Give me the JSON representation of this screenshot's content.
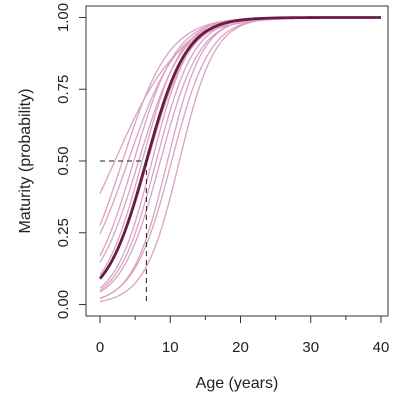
{
  "chart_data": {
    "type": "line",
    "xlabel": "Age (years)",
    "ylabel": "Maturity (probability)",
    "xlim": [
      -2,
      41
    ],
    "ylim": [
      -0.04,
      1.04
    ],
    "x_ticks": [
      0,
      10,
      20,
      30,
      40
    ],
    "x_tick_labels": [
      "0",
      "10",
      "20",
      "30",
      "40"
    ],
    "x_minor_ticks": [
      5,
      15,
      25,
      35
    ],
    "y_ticks": [
      0,
      0.25,
      0.5,
      0.75,
      1.0
    ],
    "y_tick_labels": [
      "0.00",
      "0.25",
      "0.50",
      "0.75",
      "1.00"
    ],
    "grid": false,
    "legend": "none",
    "x_range": [
      0,
      40
    ],
    "curve_model": "logistic",
    "main_curve": {
      "x50": 6.6,
      "slope": 0.35,
      "color": "#6b1a45"
    },
    "sample_curves": {
      "color": "#d9a3c1",
      "params": [
        {
          "x50": 2.1,
          "slope": 0.22
        },
        {
          "x50": 3.2,
          "slope": 0.3
        },
        {
          "x50": 4.0,
          "slope": 0.28
        },
        {
          "x50": 4.8,
          "slope": 0.33
        },
        {
          "x50": 5.5,
          "slope": 0.32
        },
        {
          "x50": 6.0,
          "slope": 0.36
        },
        {
          "x50": 6.8,
          "slope": 0.34
        },
        {
          "x50": 7.4,
          "slope": 0.38
        },
        {
          "x50": 8.0,
          "slope": 0.37
        },
        {
          "x50": 8.6,
          "slope": 0.36
        },
        {
          "x50": 9.6,
          "slope": 0.4
        },
        {
          "x50": 10.2,
          "slope": 0.37
        },
        {
          "x50": 11.3,
          "slope": 0.4
        }
      ]
    },
    "reference_lines": {
      "y": 0.5,
      "x": 6.6,
      "color": "#222222"
    }
  }
}
